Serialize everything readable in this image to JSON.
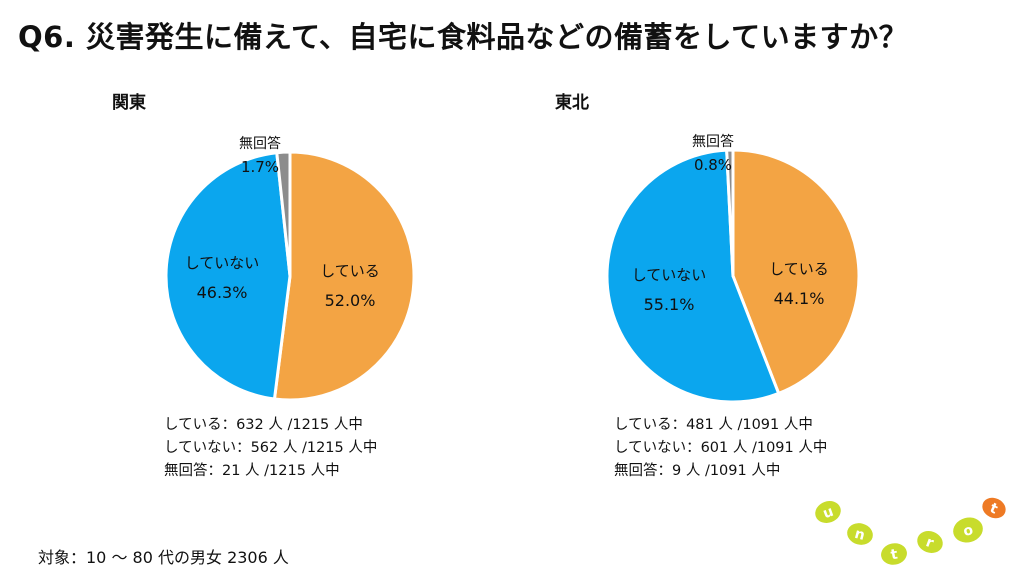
{
  "title": "Q6. 災害発生に備えて、自宅に食料品などの備蓄をしていますか？",
  "footnote": "対象：10 〜 80 代の男女 2306 人",
  "colors": {
    "yes": "#f3a444",
    "no": "#0ba6ee",
    "na": "#8c8c8c"
  },
  "chart_data": [
    {
      "type": "pie",
      "title": "関東",
      "categories": [
        "している",
        "していない",
        "無回答"
      ],
      "values": [
        52.0,
        46.3,
        1.7
      ],
      "counts": [
        632,
        562,
        21
      ],
      "total": 1215
    },
    {
      "type": "pie",
      "title": "東北",
      "categories": [
        "している",
        "していない",
        "無回答"
      ],
      "values": [
        44.1,
        55.1,
        0.8
      ],
      "counts": [
        481,
        601,
        9
      ],
      "total": 1091
    }
  ],
  "panels": [
    {
      "label": "関東",
      "stats": [
        "している：632 人 /1215 人中",
        "していない：562 人 /1215 人中",
        "無回答：21 人 /1215 人中"
      ]
    },
    {
      "label": "東北",
      "stats": [
        "している：481 人 /1091 人中",
        "していない：601 人 /1091 人中",
        "無回答：9 人 /1091 人中"
      ]
    }
  ],
  "logo": {
    "letters": [
      "u",
      "n",
      "t",
      "r",
      "o",
      "t"
    ],
    "color": "#c8dc2c",
    "accent": "#ee7a24",
    "icon": "untrot-logo"
  }
}
